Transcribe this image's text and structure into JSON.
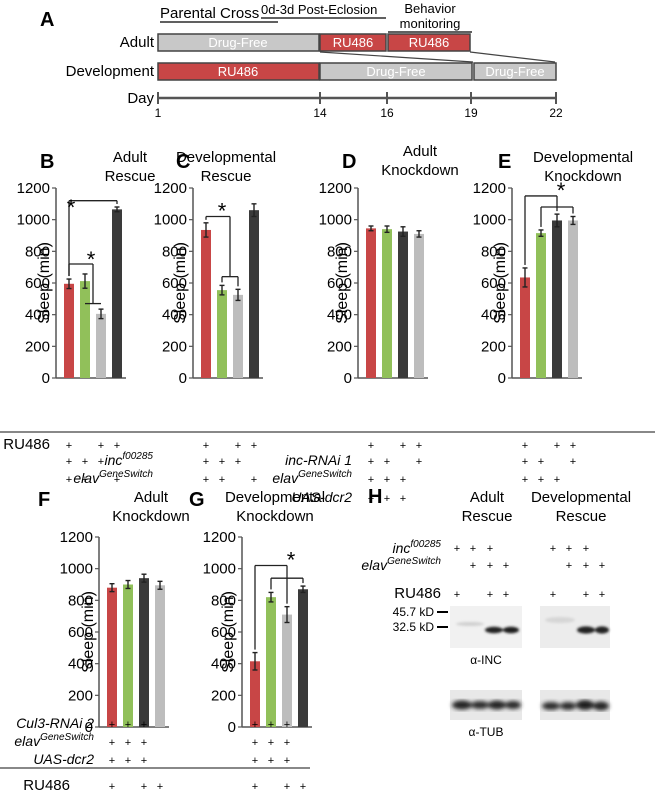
{
  "colors": {
    "red": "#c84646",
    "green": "#91c05a",
    "gray": "#bdbdbd",
    "dark": "#3a3a3a",
    "axis": "#555555",
    "bar_gray": "#c8c8c8"
  },
  "panel_a": {
    "label": "A",
    "headers": {
      "parental": "Parental Cross",
      "post": "0d-3d Post-Eclosion",
      "behavior_1": "Behavior",
      "behavior_2": "monitoring"
    },
    "rows": {
      "adult": "Adult",
      "development": "Development",
      "day": "Day"
    },
    "adult_boxes": [
      "Drug-Free",
      "RU486",
      "RU486"
    ],
    "dev_boxes": [
      "RU486",
      "Drug-Free",
      "Drug-Free"
    ],
    "days": [
      "1",
      "14",
      "16",
      "19",
      "22"
    ]
  },
  "labels": {
    "sleep_axis": "Sleep (min)",
    "ru486": "RU486",
    "plus": "+",
    "star": "*"
  },
  "chart_data": [
    {
      "type": "bar",
      "panel": "B",
      "title": [
        "Adult",
        "Rescue"
      ],
      "ylabel": "Sleep (min)",
      "ylim": [
        0,
        1200
      ],
      "yticks": [
        0,
        200,
        400,
        600,
        800,
        1000,
        1200
      ],
      "values": [
        595,
        612,
        405,
        1065
      ],
      "errors": [
        30,
        45,
        30,
        15
      ],
      "colors": [
        "red",
        "green",
        "gray",
        "dark"
      ],
      "genotype": [
        {
          "label": "inc",
          "sup": "f00285",
          "marks": [
            1,
            1,
            1,
            0
          ]
        },
        {
          "label": "elav",
          "sup": "GeneSwitch",
          "marks": [
            1,
            1,
            0,
            1
          ]
        }
      ],
      "ru486": [
        1,
        0,
        1,
        1
      ]
    },
    {
      "type": "bar",
      "panel": "C",
      "title": [
        "Developmental",
        "Rescue"
      ],
      "ylabel": "Sleep (min)",
      "ylim": [
        0,
        1200
      ],
      "yticks": [
        0,
        200,
        400,
        600,
        800,
        1000,
        1200
      ],
      "values": [
        935,
        555,
        525,
        1060
      ],
      "errors": [
        45,
        30,
        35,
        40
      ],
      "colors": [
        "red",
        "green",
        "gray",
        "dark"
      ],
      "genotype": [
        {
          "label": "",
          "sup": "",
          "marks": [
            1,
            1,
            1,
            0
          ]
        },
        {
          "label": "",
          "sup": "",
          "marks": [
            1,
            1,
            0,
            1
          ]
        }
      ],
      "ru486": [
        1,
        0,
        1,
        1
      ]
    },
    {
      "type": "bar",
      "panel": "D",
      "title": [
        "Adult",
        "Knockdown"
      ],
      "ylabel": "Sleep (min)",
      "ylim": [
        0,
        1200
      ],
      "yticks": [
        0,
        200,
        400,
        600,
        800,
        1000,
        1200
      ],
      "values": [
        945,
        940,
        925,
        910
      ],
      "errors": [
        15,
        20,
        30,
        20
      ],
      "colors": [
        "red",
        "green",
        "dark",
        "gray"
      ],
      "genotype": [
        {
          "label": "inc-RNAi 1",
          "sup": "",
          "marks": [
            1,
            1,
            0,
            1
          ]
        },
        {
          "label": "elav",
          "sup": "GeneSwitch",
          "marks": [
            1,
            1,
            1,
            0
          ]
        },
        {
          "label": "UAS-dcr2",
          "sup": "",
          "marks": [
            1,
            1,
            1,
            0
          ]
        }
      ],
      "ru486": [
        1,
        0,
        1,
        1
      ]
    },
    {
      "type": "bar",
      "panel": "E",
      "title": [
        "Developmental",
        "Knockdown"
      ],
      "ylabel": "Sleep (min)",
      "ylim": [
        0,
        1200
      ],
      "yticks": [
        0,
        200,
        400,
        600,
        800,
        1000,
        1200
      ],
      "values": [
        635,
        915,
        995,
        995
      ],
      "errors": [
        60,
        20,
        40,
        25
      ],
      "colors": [
        "red",
        "green",
        "dark",
        "gray"
      ],
      "genotype": [
        {
          "label": "",
          "sup": "",
          "marks": [
            1,
            1,
            0,
            1
          ]
        },
        {
          "label": "",
          "sup": "",
          "marks": [
            1,
            1,
            1,
            0
          ]
        }
      ],
      "ru486": [
        1,
        0,
        1,
        1
      ]
    },
    {
      "type": "bar",
      "panel": "F",
      "title": [
        "Adult",
        "Knockdown"
      ],
      "ylabel": "Sleep (min)",
      "ylim": [
        0,
        1200
      ],
      "yticks": [
        0,
        200,
        400,
        600,
        800,
        1000,
        1200
      ],
      "values": [
        880,
        900,
        940,
        895
      ],
      "errors": [
        25,
        25,
        25,
        25
      ],
      "colors": [
        "red",
        "green",
        "dark",
        "gray"
      ],
      "genotype": [
        {
          "label": "Cul3-RNAi 2",
          "sup": "",
          "marks": [
            1,
            1,
            1,
            0
          ]
        },
        {
          "label": "elav",
          "sup": "GeneSwitch",
          "marks": [
            1,
            1,
            1,
            0
          ]
        },
        {
          "label": "UAS-dcr2",
          "sup": "",
          "marks": [
            1,
            1,
            1,
            0
          ]
        }
      ],
      "ru486": [
        1,
        0,
        1,
        1
      ]
    },
    {
      "type": "bar",
      "panel": "G",
      "title": [
        "Developmental",
        "Knockdown"
      ],
      "ylabel": "Sleep (min)",
      "ylim": [
        0,
        1200
      ],
      "yticks": [
        0,
        200,
        400,
        600,
        800,
        1000,
        1200
      ],
      "values": [
        415,
        820,
        710,
        870
      ],
      "errors": [
        55,
        30,
        50,
        20
      ],
      "colors": [
        "red",
        "green",
        "gray",
        "dark"
      ],
      "genotype": [
        {
          "label": "",
          "sup": "",
          "marks": [
            1,
            1,
            1,
            0
          ]
        },
        {
          "label": "",
          "sup": "",
          "marks": [
            1,
            1,
            1,
            0
          ]
        },
        {
          "label": "",
          "sup": "",
          "marks": [
            1,
            1,
            1,
            0
          ]
        }
      ],
      "ru486": [
        1,
        0,
        1,
        1
      ]
    }
  ],
  "panel_h": {
    "label": "H",
    "titles": [
      [
        "Adult",
        "Rescue"
      ],
      [
        "Developmental",
        "Rescue"
      ]
    ],
    "genotype": [
      {
        "label": "inc",
        "sup": "f00285",
        "marks_left": [
          1,
          1,
          1,
          0
        ],
        "marks_right": [
          1,
          1,
          1,
          0
        ]
      },
      {
        "label": "elav",
        "sup": "GeneSwitch",
        "marks_left": [
          0,
          1,
          1,
          1
        ],
        "marks_right": [
          0,
          1,
          1,
          1
        ]
      }
    ],
    "ru486": "RU486",
    "ru486_left": [
      1,
      0,
      1,
      1
    ],
    "ru486_right": [
      1,
      0,
      1,
      1
    ],
    "markers": [
      "45.7 kD",
      "32.5 kD"
    ],
    "blot_labels": [
      "α-INC",
      "α-TUB"
    ]
  }
}
